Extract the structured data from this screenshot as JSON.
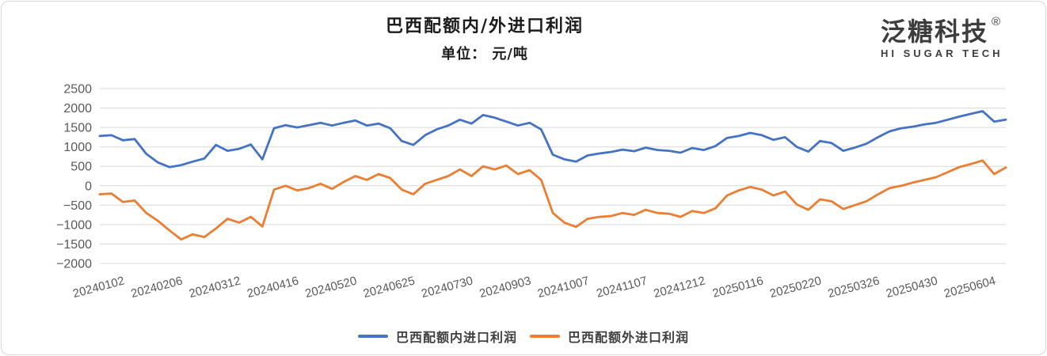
{
  "logo": {
    "cn": "泛糖科技",
    "reg": "®",
    "en": "HI SUGAR TECH",
    "color": "#3d3d3d"
  },
  "chart_data": {
    "type": "line",
    "title": "巴西配额内/外进口利润",
    "unit_label": "单位： 元/吨",
    "ylabel": "元/吨",
    "ylim": [
      -2000,
      2500
    ],
    "y_tick_step": 500,
    "y_ticks": [
      2500,
      2000,
      1500,
      1000,
      500,
      0,
      -500,
      -1000,
      -1500,
      -2000
    ],
    "grid": true,
    "gridline_color": "#d9d9d9",
    "tick_label_color": "#595959",
    "legend_position": "bottom",
    "x_tick_labels": [
      "20240102",
      "20240206",
      "20240312",
      "20240416",
      "20240520",
      "20240625",
      "20240730",
      "20240903",
      "20241007",
      "20241107",
      "20241212",
      "20250116",
      "20250220",
      "20250326",
      "20250430",
      "20250604"
    ],
    "label_every": 5,
    "x_unit": "weekly samples (trading dates)",
    "series": [
      {
        "name": "巴西配额内进口利润",
        "color": "#4472c4",
        "values": [
          1280,
          1300,
          1170,
          1200,
          820,
          600,
          480,
          530,
          620,
          700,
          1050,
          900,
          950,
          1060,
          680,
          1480,
          1560,
          1500,
          1560,
          1620,
          1550,
          1620,
          1680,
          1550,
          1600,
          1480,
          1150,
          1050,
          1300,
          1450,
          1550,
          1700,
          1600,
          1820,
          1750,
          1650,
          1550,
          1620,
          1450,
          800,
          680,
          620,
          780,
          830,
          870,
          930,
          890,
          980,
          920,
          900,
          850,
          970,
          920,
          1020,
          1230,
          1280,
          1360,
          1300,
          1180,
          1250,
          1000,
          880,
          1150,
          1100,
          900,
          980,
          1080,
          1250,
          1400,
          1480,
          1520,
          1580,
          1620,
          1700,
          1780,
          1850,
          1920,
          1650,
          1700
        ]
      },
      {
        "name": "巴西配额外进口利润",
        "color": "#ed7d31",
        "values": [
          -220,
          -200,
          -420,
          -380,
          -700,
          -900,
          -1150,
          -1380,
          -1250,
          -1320,
          -1100,
          -850,
          -950,
          -800,
          -1050,
          -100,
          0,
          -120,
          -60,
          50,
          -80,
          100,
          250,
          150,
          300,
          200,
          -100,
          -220,
          50,
          150,
          250,
          420,
          250,
          500,
          420,
          520,
          300,
          400,
          150,
          -700,
          -950,
          -1060,
          -850,
          -800,
          -780,
          -700,
          -750,
          -620,
          -700,
          -720,
          -800,
          -650,
          -700,
          -580,
          -250,
          -120,
          -30,
          -100,
          -250,
          -150,
          -480,
          -620,
          -350,
          -400,
          -600,
          -500,
          -400,
          -220,
          -60,
          0,
          80,
          150,
          220,
          350,
          480,
          560,
          650,
          300,
          470
        ]
      }
    ]
  }
}
